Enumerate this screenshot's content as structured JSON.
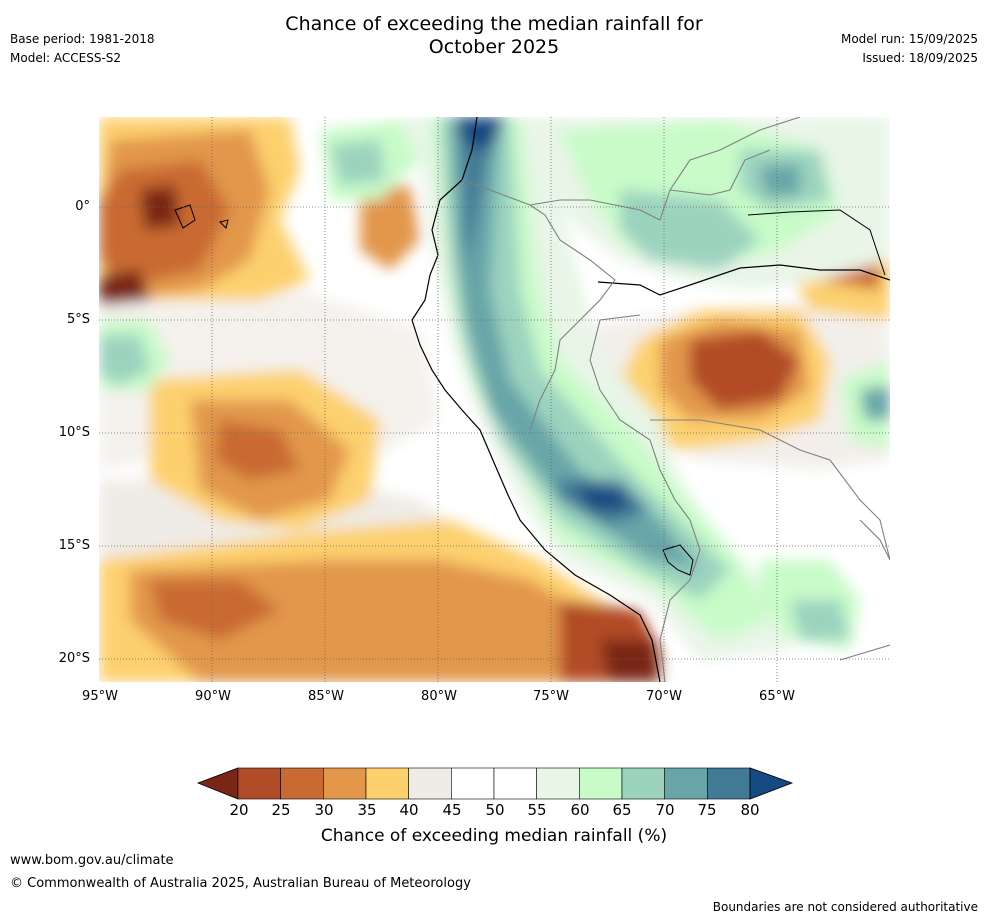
{
  "header": {
    "title_line1": "Chance of exceeding the median rainfall for",
    "title_line2": "October 2025",
    "base_period": "Base period: 1981-2018",
    "model": "Model: ACCESS-S2",
    "model_run": "Model run: 15/09/2025",
    "issued": "Issued: 18/09/2025"
  },
  "map": {
    "lat_labels": [
      "0°",
      "5°S",
      "10°S",
      "15°S",
      "20°S"
    ],
    "lon_labels": [
      "95°W",
      "90°W",
      "85°W",
      "80°W",
      "75°W",
      "70°W",
      "65°W"
    ],
    "lat_range": [
      -21,
      4
    ],
    "lon_range": [
      -95,
      -60
    ]
  },
  "colorbar": {
    "title": "Chance of exceeding median rainfall (%)",
    "labels": [
      "20",
      "25",
      "30",
      "35",
      "40",
      "45",
      "50",
      "55",
      "60",
      "65",
      "70",
      "75",
      "80"
    ],
    "colors": [
      "#7a2617",
      "#b24c28",
      "#c96a33",
      "#e2974b",
      "#fdd06e",
      "#efebe6",
      "#ffffff",
      "#ffffff",
      "#e8f5e7",
      "#c8fbc8",
      "#9bd3bf",
      "#68a5a8",
      "#427995",
      "#154a82"
    ]
  },
  "footer": {
    "url": "www.bom.gov.au/climate",
    "copyright": "© Commonwealth of Australia 2025, Australian Bureau of Meteorology",
    "disclaimer": "Boundaries are not considered authoritative"
  }
}
